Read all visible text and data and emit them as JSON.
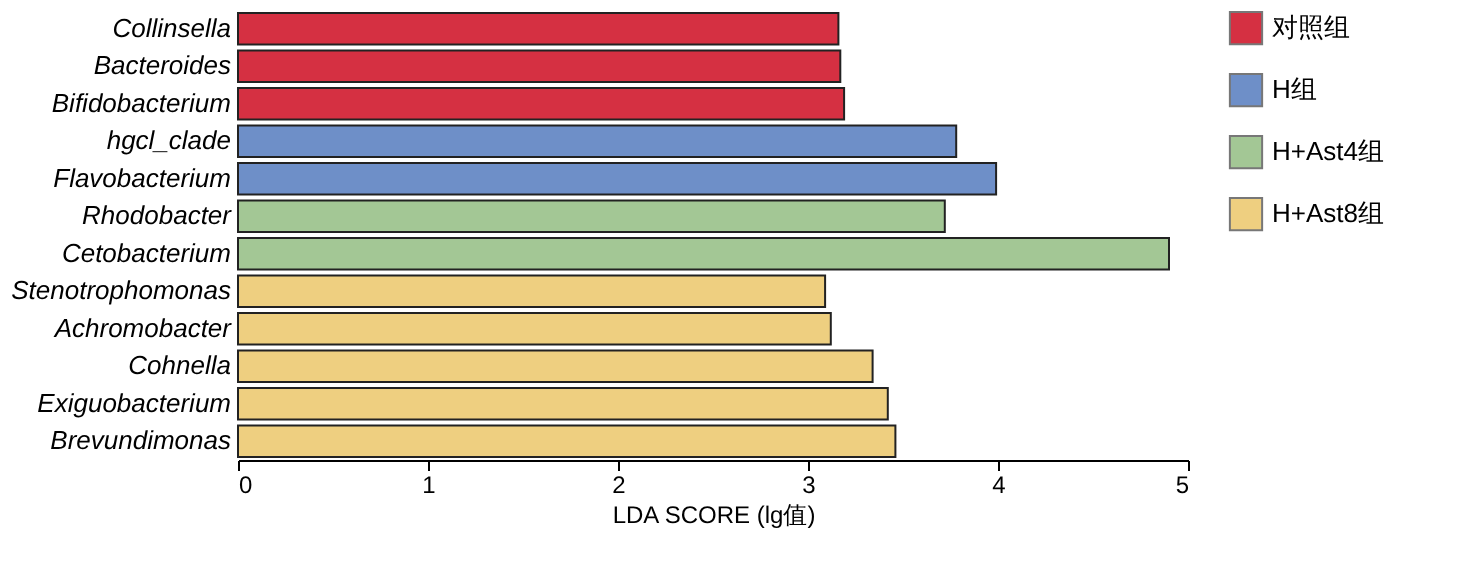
{
  "chart_data": {
    "type": "bar",
    "orientation": "horizontal",
    "xlabel": "LDA SCORE (lg值)",
    "categories": [
      "Collinsella",
      "Bacteroides",
      "Bifidobacterium",
      "hgcl_clade",
      "Flavobacterium",
      "Rhodobacter",
      "Cetobacterium",
      "Stenotrophomonas",
      "Achromobacter",
      "Cohnella",
      "Exiguobacterium",
      "Brevundimonas"
    ],
    "series": [
      {
        "name": "对照组",
        "color": "#d53042",
        "values": [
          3.16,
          3.17,
          3.19,
          null,
          null,
          null,
          null,
          null,
          null,
          null,
          null,
          null
        ]
      },
      {
        "name": "H组",
        "color": "#6e8fc8",
        "values": [
          null,
          null,
          null,
          3.78,
          3.99,
          null,
          null,
          null,
          null,
          null,
          null,
          null
        ]
      },
      {
        "name": "H+Ast4组",
        "color": "#a3c795",
        "values": [
          null,
          null,
          null,
          null,
          null,
          3.72,
          4.9,
          null,
          null,
          null,
          null,
          null
        ]
      },
      {
        "name": "H+Ast8组",
        "color": "#eecf80",
        "values": [
          null,
          null,
          null,
          null,
          null,
          null,
          null,
          3.09,
          3.12,
          3.34,
          3.42,
          3.46
        ]
      }
    ],
    "xlim": [
      0,
      5
    ],
    "xticks": [
      0,
      1,
      2,
      3,
      4,
      5
    ],
    "grid": false,
    "legend": "top right"
  }
}
